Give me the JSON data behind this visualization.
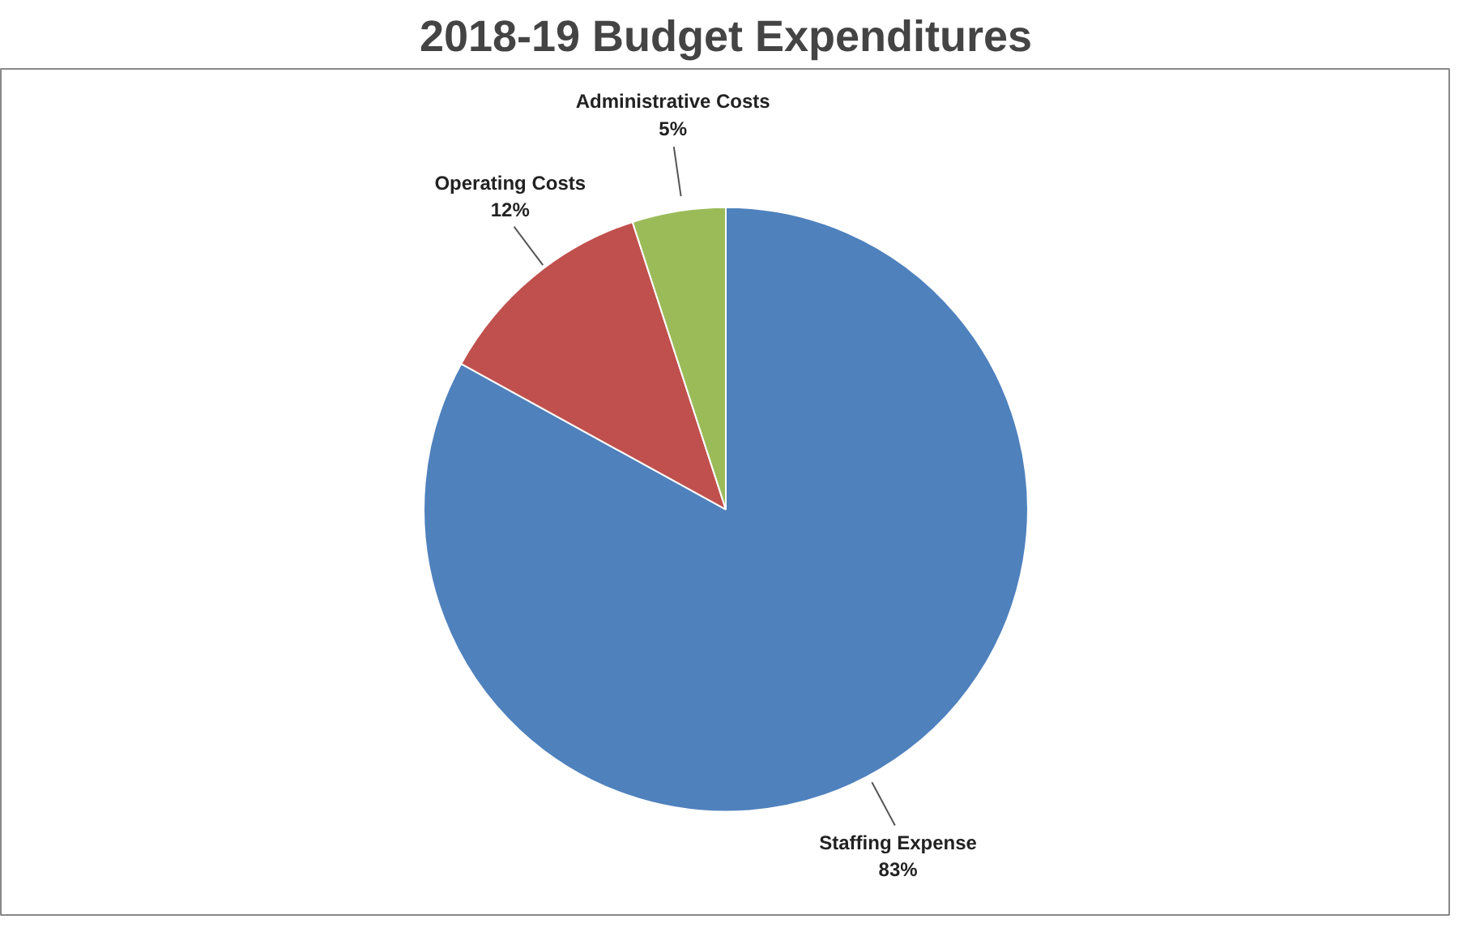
{
  "chart_data": {
    "type": "pie",
    "title": "2018-19 Budget Expenditures",
    "categories": [
      "Staffing Expense",
      "Operating Costs",
      "Administrative Costs"
    ],
    "values": [
      83,
      12,
      5
    ],
    "value_labels": [
      "83%",
      "12%",
      "5%"
    ],
    "colors": [
      "#4f81bd",
      "#c0504d",
      "#9bbb59"
    ]
  }
}
